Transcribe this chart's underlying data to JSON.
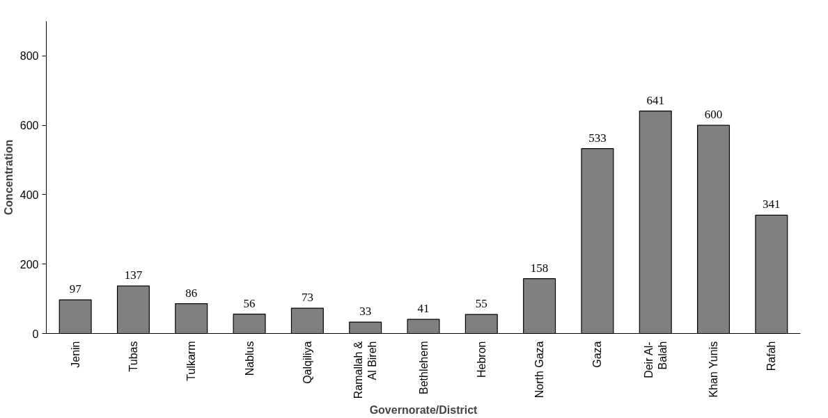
{
  "chart_data": {
    "type": "bar",
    "xlabel": "Governorate/District",
    "ylabel": "Concentration",
    "categories": [
      "Jenin",
      "Tubas",
      "Tulkarm",
      "Nablus",
      "Qalqiliya",
      "Ramallah & Al Bireh",
      "Bethlehem",
      "Hebron",
      "North Gaza",
      "Gaza",
      "Deir Al-Balah",
      "Khan Yunis",
      "Rafah"
    ],
    "values": [
      97,
      137,
      86,
      56,
      73,
      33,
      41,
      55,
      158,
      533,
      641,
      600,
      341
    ],
    "color": "#808080",
    "ylim": [
      0,
      900
    ],
    "yticks": [
      0,
      200,
      400,
      600,
      800
    ],
    "grid": false,
    "data_labels": true
  }
}
